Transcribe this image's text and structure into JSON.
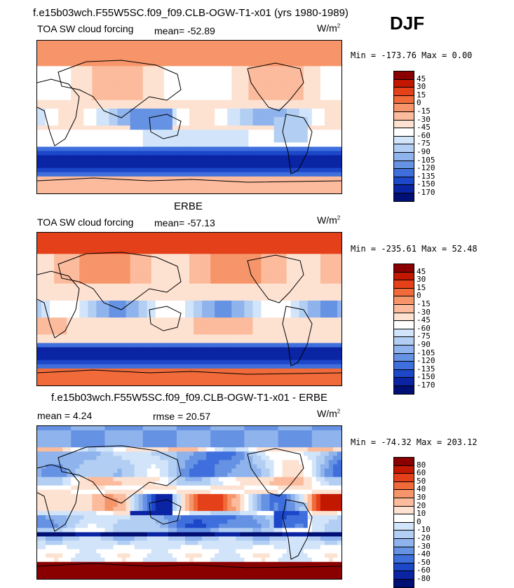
{
  "header": {
    "title": "f.e15b03wch.F55W5SC.f09_f09.CLB-OGW-T1-x01 (yrs 1980-1989)",
    "season": "DJF"
  },
  "panels": [
    {
      "heading": "",
      "left_label": "TOA SW cloud forcing",
      "stat_label": "mean=",
      "stat_value": "-52.89",
      "units": "W/m",
      "units_exp": "2",
      "minmax": "Min = -173.76  Max =   0.00"
    },
    {
      "heading": "ERBE",
      "left_label": "TOA SW cloud forcing",
      "stat_label": "mean=",
      "stat_value": "-57.13",
      "units": "W/m",
      "units_exp": "2",
      "minmax": "Min = -235.61  Max =  52.48"
    },
    {
      "heading": "f.e15b03wch.F55W5SC.f09_f09.CLB-OGW-T1-x01 - ERBE",
      "left_label": "mean =   4.24",
      "stat_label": "rmse =",
      "stat_value": "20.57",
      "units": "W/m",
      "units_exp": "2",
      "minmax": "Min = -74.32  Max = 203.12"
    }
  ],
  "chart_data": [
    {
      "type": "heatmap",
      "title": "TOA SW cloud forcing",
      "subtitle": "mean= -52.89",
      "units": "W/m2",
      "min": -173.76,
      "max": 0.0,
      "mean": -52.89,
      "colorbar_levels": [
        "45",
        "30",
        "15",
        "0",
        "-15",
        "-30",
        "-45",
        "-60",
        "-75",
        "-90",
        "-105",
        "-120",
        "-135",
        "-150",
        "-170"
      ],
      "colorbar_colors": [
        "#8a0000",
        "#c21800",
        "#e4401a",
        "#f06a3a",
        "#f7956a",
        "#fbbb9c",
        "#fde2d2",
        "#ffffff",
        "#d2e4f9",
        "#b2cff3",
        "#8fb3ec",
        "#6692e4",
        "#3f6fdc",
        "#1c47c9",
        "#0a24a4",
        "#000f74"
      ],
      "field": "model"
    },
    {
      "type": "heatmap",
      "title": "TOA SW cloud forcing",
      "subtitle": "ERBE mean= -57.13",
      "units": "W/m2",
      "min": -235.61,
      "max": 52.48,
      "mean": -57.13,
      "colorbar_levels": [
        "45",
        "30",
        "15",
        "0",
        "-15",
        "-30",
        "-45",
        "-60",
        "-75",
        "-90",
        "-105",
        "-120",
        "-135",
        "-150",
        "-170"
      ],
      "colorbar_colors": [
        "#8a0000",
        "#c21800",
        "#e4401a",
        "#f06a3a",
        "#f7956a",
        "#fbbb9c",
        "#fde2d2",
        "#ffffff",
        "#d2e4f9",
        "#b2cff3",
        "#8fb3ec",
        "#6692e4",
        "#3f6fdc",
        "#1c47c9",
        "#0a24a4",
        "#000f74"
      ],
      "field": "obs"
    },
    {
      "type": "heatmap",
      "title": "f.e15b03wch.F55W5SC.f09_f09.CLB-OGW-T1-x01 - ERBE",
      "units": "W/m2",
      "min": -74.32,
      "max": 203.12,
      "mean": 4.24,
      "rmse": 20.57,
      "colorbar_levels": [
        "80",
        "60",
        "50",
        "40",
        "30",
        "20",
        "10",
        "0",
        "-10",
        "-20",
        "-30",
        "-40",
        "-50",
        "-60",
        "-80"
      ],
      "colorbar_colors": [
        "#8a0000",
        "#c21800",
        "#e4401a",
        "#f06a3a",
        "#f7956a",
        "#fbbb9c",
        "#fde2d2",
        "#ffffff",
        "#d2e4f9",
        "#b2cff3",
        "#8fb3ec",
        "#6692e4",
        "#3f6fdc",
        "#1c47c9",
        "#0a24a4",
        "#000f74"
      ],
      "field": "diff"
    }
  ]
}
